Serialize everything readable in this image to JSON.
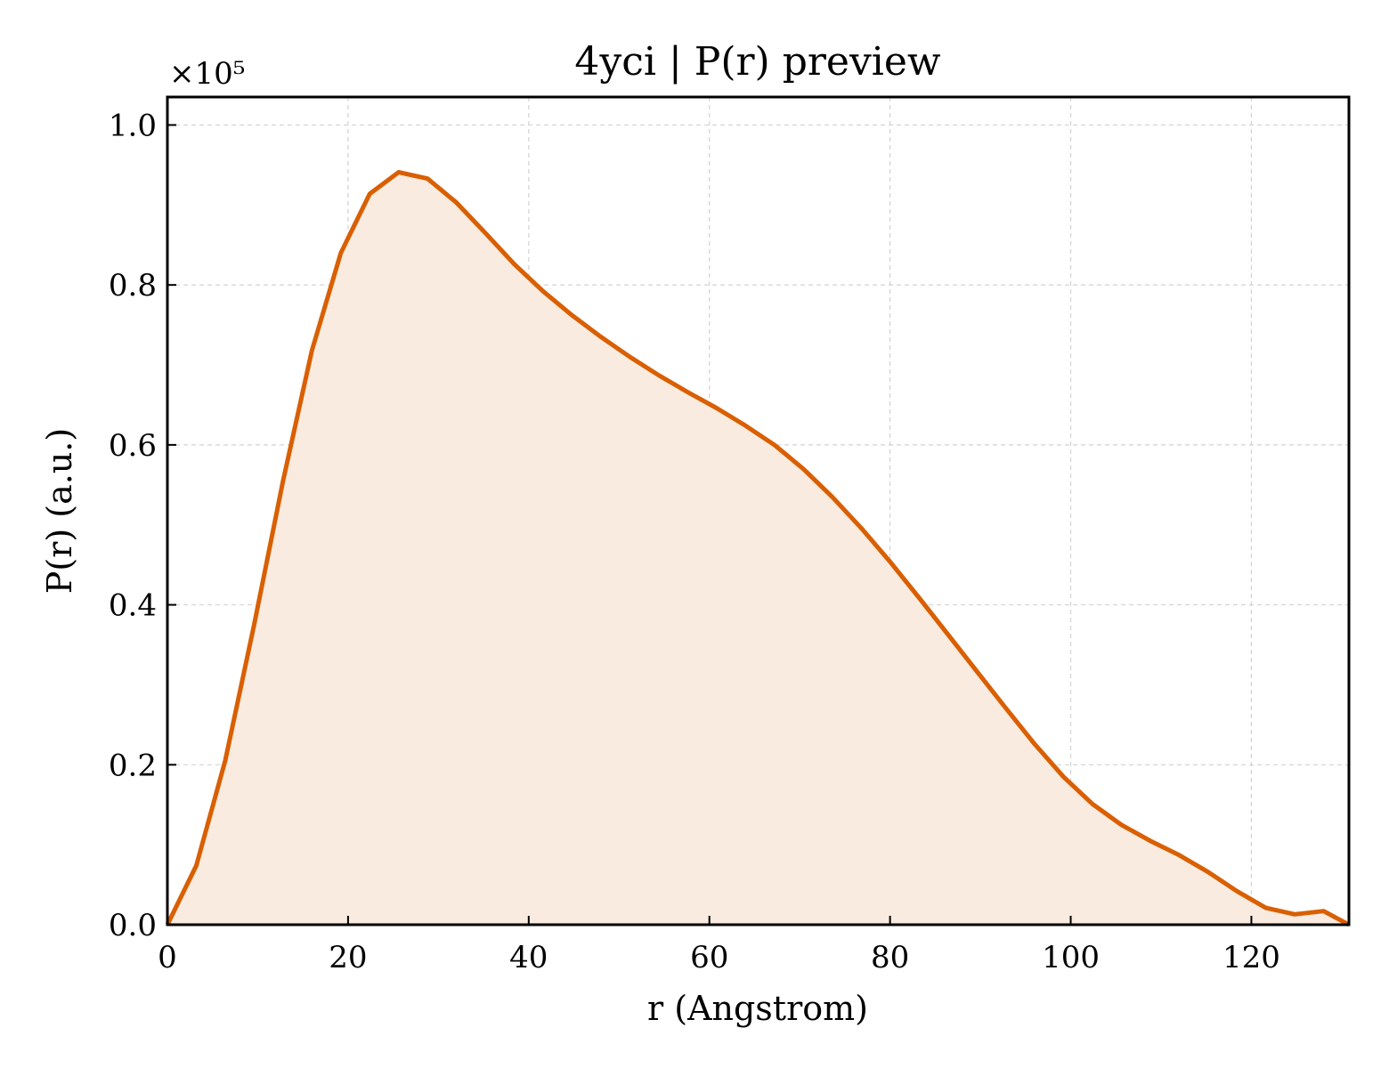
{
  "chart_data": {
    "type": "area",
    "title": "4yci | P(r) preview",
    "xlabel": "r (Angstrom)",
    "ylabel": "P(r) (a.u.)",
    "y_multiplier_label": "×10⁵",
    "xlim": [
      0,
      130.8
    ],
    "ylim": [
      0,
      1.035
    ],
    "xticks": [
      0,
      20,
      40,
      60,
      80,
      100,
      120
    ],
    "xtick_labels": [
      "0",
      "20",
      "40",
      "60",
      "80",
      "100",
      "120"
    ],
    "yticks": [
      0.0,
      0.2,
      0.4,
      0.6,
      0.8,
      1.0
    ],
    "ytick_labels": [
      "0.0",
      "0.2",
      "0.4",
      "0.6",
      "0.8",
      "1.0"
    ],
    "grid": true,
    "line_color": "#d95f02",
    "fill_color": "#f9ebdf",
    "x": [
      0,
      3.2,
      6.4,
      9.6,
      12.8,
      16.0,
      19.2,
      22.4,
      25.6,
      28.8,
      32.0,
      35.2,
      38.4,
      41.6,
      44.8,
      48.0,
      51.2,
      54.4,
      57.6,
      60.8,
      64.0,
      67.2,
      70.4,
      73.6,
      76.8,
      80.0,
      83.2,
      86.4,
      89.6,
      92.8,
      96.0,
      99.2,
      102.4,
      105.6,
      108.8,
      112.0,
      115.2,
      118.4,
      121.6,
      124.8,
      128.0,
      130.8
    ],
    "y": [
      0.0,
      0.074,
      0.205,
      0.375,
      0.555,
      0.718,
      0.84,
      0.914,
      0.941,
      0.933,
      0.903,
      0.865,
      0.826,
      0.792,
      0.762,
      0.735,
      0.71,
      0.687,
      0.666,
      0.646,
      0.624,
      0.6,
      0.57,
      0.535,
      0.496,
      0.454,
      0.409,
      0.363,
      0.317,
      0.271,
      0.226,
      0.185,
      0.151,
      0.125,
      0.105,
      0.087,
      0.066,
      0.042,
      0.021,
      0.013,
      0.017,
      0.0
    ]
  }
}
